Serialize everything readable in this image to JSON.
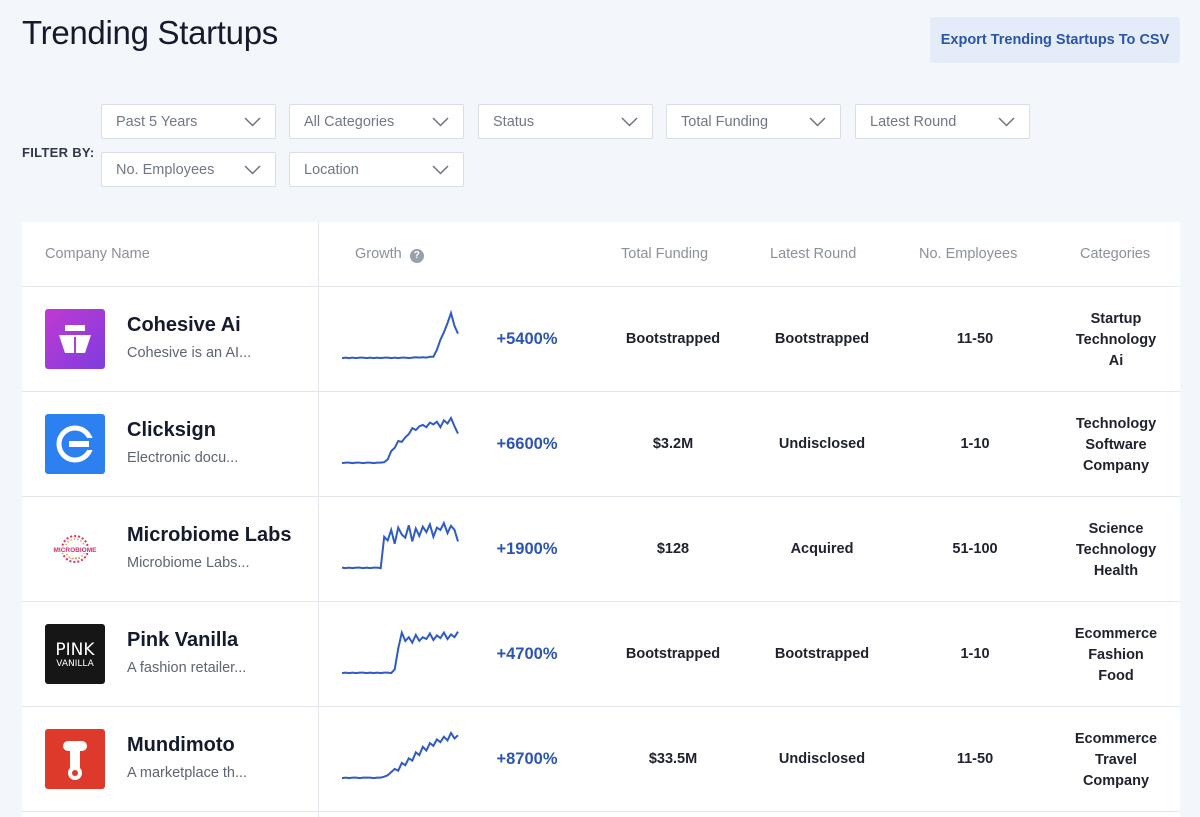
{
  "page": {
    "title": "Trending Startups",
    "export_label": "Export Trending Startups To CSV"
  },
  "filters": {
    "label": "FILTER BY:",
    "items": [
      {
        "label": "Past 5 Years"
      },
      {
        "label": "All Categories"
      },
      {
        "label": "Status"
      },
      {
        "label": "Total Funding"
      },
      {
        "label": "Latest Round"
      },
      {
        "label": "No. Employees"
      },
      {
        "label": "Location"
      }
    ]
  },
  "table": {
    "headers": {
      "company": "Company Name",
      "growth": "Growth",
      "growth_help": "?",
      "funding": "Total Funding",
      "round": "Latest Round",
      "employees": "No. Employees",
      "categories": "Categories"
    },
    "rows": [
      {
        "name": "Cohesive Ai",
        "desc": "Cohesive is an AI...",
        "logo": "cohesive-logo",
        "growth": "+5400%",
        "funding": "Bootstrapped",
        "round": "Bootstrapped",
        "employees": "11-50",
        "categories": [
          "Startup",
          "Technology",
          "Ai"
        ],
        "trend": [
          0.02,
          0.03,
          0.02,
          0.03,
          0.02,
          0.03,
          0.03,
          0.02,
          0.03,
          0.02,
          0.03,
          0.02,
          0.03,
          0.03,
          0.02,
          0.03,
          0.02,
          0.03,
          0.03,
          0.02,
          0.03,
          0.04,
          0.03,
          0.04,
          0.03,
          0.05,
          0.05,
          0.2,
          0.42,
          0.58,
          0.78,
          1.0,
          0.72,
          0.55
        ]
      },
      {
        "name": "Clicksign",
        "desc": "Electronic docu...",
        "logo": "clicksign-logo",
        "growth": "+6600%",
        "funding": "$3.2M",
        "round": "Undisclosed",
        "employees": "1-10",
        "categories": [
          "Technology",
          "Software",
          "Company"
        ],
        "trend": [
          0.02,
          0.03,
          0.03,
          0.02,
          0.03,
          0.03,
          0.02,
          0.03,
          0.03,
          0.02,
          0.03,
          0.03,
          0.04,
          0.1,
          0.28,
          0.35,
          0.5,
          0.48,
          0.58,
          0.65,
          0.78,
          0.74,
          0.82,
          0.85,
          0.8,
          0.9,
          0.86,
          0.92,
          0.8,
          0.95,
          0.88,
          1.0,
          0.82,
          0.66
        ]
      },
      {
        "name": "Microbiome Labs",
        "desc": "Microbiome Labs...",
        "logo": "microbiome-logo",
        "growth": "+1900%",
        "funding": "$128",
        "round": "Acquired",
        "employees": "51-100",
        "categories": [
          "Science",
          "Technology",
          "Health"
        ],
        "trend": [
          0.03,
          0.02,
          0.03,
          0.02,
          0.03,
          0.03,
          0.02,
          0.03,
          0.02,
          0.03,
          0.03,
          0.02,
          0.7,
          0.62,
          0.85,
          0.55,
          0.9,
          0.75,
          0.68,
          0.95,
          0.6,
          0.88,
          0.72,
          0.92,
          0.8,
          0.97,
          0.7,
          0.9,
          0.85,
          1.0,
          0.78,
          0.94,
          0.85,
          0.6
        ]
      },
      {
        "name": "Pink Vanilla",
        "desc": "A fashion retailer...",
        "logo": "pinkvanilla-logo",
        "growth": "+4700%",
        "funding": "Bootstrapped",
        "round": "Bootstrapped",
        "employees": "1-10",
        "categories": [
          "Ecommerce",
          "Fashion",
          "Food"
        ],
        "trend": [
          0.02,
          0.03,
          0.02,
          0.03,
          0.02,
          0.03,
          0.03,
          0.02,
          0.03,
          0.02,
          0.03,
          0.02,
          0.03,
          0.03,
          0.02,
          0.1,
          0.55,
          0.9,
          0.72,
          0.8,
          0.68,
          0.85,
          0.72,
          0.8,
          0.76,
          0.88,
          0.74,
          0.84,
          0.78,
          0.9,
          0.76,
          0.86,
          0.8,
          0.92
        ]
      },
      {
        "name": "Mundimoto",
        "desc": "A marketplace th...",
        "logo": "mundimoto-logo",
        "growth": "+8700%",
        "funding": "$33.5M",
        "round": "Undisclosed",
        "employees": "11-50",
        "categories": [
          "Ecommerce",
          "Travel",
          "Company"
        ],
        "trend": [
          0.02,
          0.03,
          0.02,
          0.03,
          0.03,
          0.02,
          0.03,
          0.03,
          0.03,
          0.02,
          0.03,
          0.03,
          0.05,
          0.08,
          0.15,
          0.22,
          0.18,
          0.35,
          0.3,
          0.45,
          0.4,
          0.58,
          0.52,
          0.7,
          0.62,
          0.78,
          0.72,
          0.86,
          0.8,
          0.92,
          0.84,
          1.0,
          0.88,
          0.95
        ]
      }
    ]
  },
  "colors": {
    "accent": "#2c55b0",
    "spark": "#2f5bc4",
    "export_bg": "#e3ecf8"
  }
}
